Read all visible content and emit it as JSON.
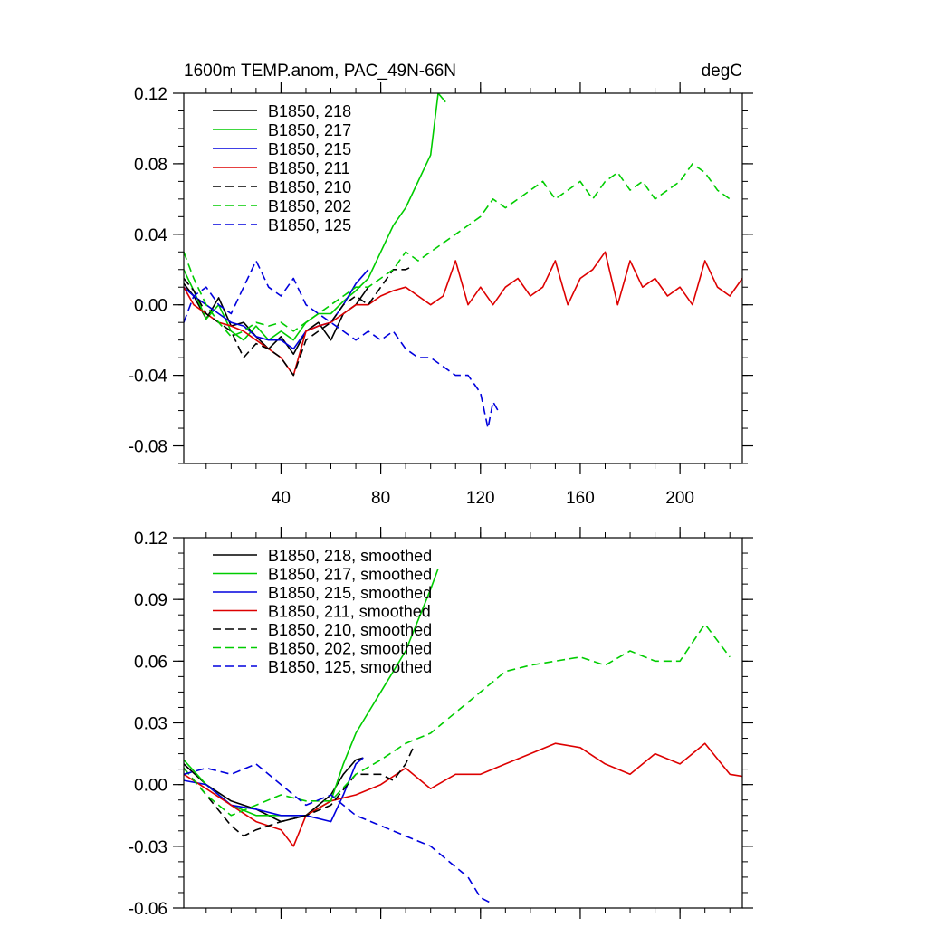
{
  "chart_data": [
    {
      "type": "line",
      "title": "1600m TEMP.anom, PAC_49N-66N",
      "units": "degC",
      "xlim": [
        1,
        225
      ],
      "ylim": [
        -0.09,
        0.12
      ],
      "xticks": [
        40,
        80,
        120,
        160,
        200
      ],
      "yticks": [
        0.12,
        0.08,
        0.04,
        0.0,
        -0.04,
        -0.08
      ],
      "ytick_labels": [
        "0.12",
        "0.08",
        "0.04",
        "0.00",
        "-0.04",
        "-0.08"
      ],
      "series": [
        {
          "name": "B1850, 218",
          "color": "#000000",
          "dash": "solid",
          "x": [
            1,
            5,
            10,
            15,
            20,
            25,
            30,
            35,
            40,
            45,
            50,
            55,
            60,
            65,
            70,
            75
          ],
          "y": [
            0.012,
            0.005,
            -0.008,
            0.004,
            -0.012,
            -0.01,
            -0.018,
            -0.025,
            -0.018,
            -0.028,
            -0.015,
            -0.01,
            -0.02,
            -0.005,
            0.0,
            0.01
          ]
        },
        {
          "name": "B1850, 217",
          "color": "#00cc00",
          "dash": "solid",
          "x": [
            1,
            5,
            10,
            15,
            20,
            25,
            30,
            35,
            40,
            45,
            50,
            55,
            60,
            65,
            70,
            75,
            80,
            85,
            90,
            95,
            100,
            103,
            106
          ],
          "y": [
            0.02,
            0.008,
            -0.008,
            0.0,
            -0.015,
            -0.02,
            -0.012,
            -0.02,
            -0.015,
            -0.02,
            -0.01,
            -0.005,
            -0.005,
            0.002,
            0.008,
            0.015,
            0.03,
            0.045,
            0.055,
            0.07,
            0.085,
            0.12,
            0.115
          ]
        },
        {
          "name": "B1850, 215",
          "color": "#0000dd",
          "dash": "solid",
          "x": [
            1,
            5,
            10,
            15,
            20,
            25,
            30,
            35,
            40,
            45,
            50,
            55,
            60,
            65,
            70,
            75
          ],
          "y": [
            0.01,
            0.005,
            0.0,
            -0.005,
            -0.01,
            -0.012,
            -0.018,
            -0.02,
            -0.02,
            -0.025,
            -0.015,
            -0.012,
            -0.01,
            0.0,
            0.012,
            0.02
          ]
        },
        {
          "name": "B1850, 211",
          "color": "#dd0000",
          "dash": "solid",
          "x": [
            1,
            5,
            10,
            15,
            20,
            25,
            30,
            35,
            40,
            45,
            50,
            55,
            60,
            65,
            70,
            75,
            80,
            85,
            90,
            95,
            100,
            105,
            110,
            115,
            120,
            125,
            130,
            135,
            140,
            145,
            150,
            155,
            160,
            165,
            170,
            175,
            180,
            185,
            190,
            195,
            200,
            205,
            210,
            215,
            220,
            225
          ],
          "y": [
            0.01,
            0.0,
            -0.005,
            -0.01,
            -0.012,
            -0.015,
            -0.02,
            -0.025,
            -0.03,
            -0.04,
            -0.015,
            -0.012,
            -0.01,
            -0.005,
            0.0,
            0.0,
            0.005,
            0.008,
            0.01,
            0.005,
            0.0,
            0.005,
            0.025,
            0.0,
            0.01,
            0.0,
            0.01,
            0.015,
            0.005,
            0.01,
            0.025,
            0.0,
            0.015,
            0.02,
            0.03,
            0.0,
            0.025,
            0.01,
            0.015,
            0.005,
            0.01,
            0.0,
            0.025,
            0.01,
            0.005,
            0.015
          ]
        },
        {
          "name": "B1850, 210",
          "color": "#000000",
          "dash": "dashed",
          "x": [
            1,
            5,
            10,
            15,
            20,
            25,
            30,
            35,
            40,
            45,
            50,
            55,
            60,
            65,
            70,
            75,
            80,
            85,
            90,
            93
          ],
          "y": [
            0.015,
            0.008,
            -0.005,
            -0.01,
            -0.015,
            -0.03,
            -0.022,
            -0.025,
            -0.03,
            -0.04,
            -0.02,
            -0.015,
            -0.01,
            0.0,
            0.005,
            0.0,
            0.01,
            0.02,
            0.02,
            0.022
          ]
        },
        {
          "name": "B1850, 202",
          "color": "#00cc00",
          "dash": "dashed",
          "x": [
            1,
            5,
            10,
            15,
            20,
            25,
            30,
            35,
            40,
            45,
            50,
            55,
            60,
            65,
            70,
            75,
            80,
            85,
            90,
            95,
            100,
            105,
            110,
            115,
            120,
            125,
            130,
            135,
            140,
            145,
            150,
            155,
            160,
            165,
            170,
            175,
            180,
            185,
            190,
            195,
            200,
            205,
            210,
            215,
            220
          ],
          "y": [
            0.03,
            0.015,
            0.0,
            -0.01,
            -0.018,
            -0.015,
            -0.01,
            -0.012,
            -0.01,
            -0.015,
            -0.01,
            -0.005,
            0.0,
            0.005,
            0.01,
            0.01,
            0.015,
            0.02,
            0.03,
            0.025,
            0.03,
            0.035,
            0.04,
            0.045,
            0.05,
            0.06,
            0.055,
            0.06,
            0.065,
            0.07,
            0.06,
            0.065,
            0.07,
            0.06,
            0.07,
            0.075,
            0.065,
            0.07,
            0.06,
            0.065,
            0.07,
            0.08,
            0.075,
            0.065,
            0.06
          ]
        },
        {
          "name": "B1850, 125",
          "color": "#0000dd",
          "dash": "dashed",
          "x": [
            1,
            5,
            10,
            15,
            20,
            25,
            30,
            35,
            40,
            45,
            50,
            55,
            60,
            65,
            70,
            75,
            80,
            85,
            90,
            95,
            100,
            105,
            110,
            115,
            120,
            123,
            125,
            127
          ],
          "y": [
            -0.01,
            0.005,
            0.01,
            0.0,
            -0.005,
            0.01,
            0.025,
            0.01,
            0.005,
            0.015,
            0.0,
            -0.005,
            -0.01,
            -0.015,
            -0.02,
            -0.015,
            -0.02,
            -0.015,
            -0.025,
            -0.03,
            -0.03,
            -0.035,
            -0.04,
            -0.04,
            -0.05,
            -0.07,
            -0.055,
            -0.06
          ]
        }
      ]
    },
    {
      "type": "line",
      "xlim": [
        1,
        225
      ],
      "ylim": [
        -0.06,
        0.12
      ],
      "xticks": [
        40,
        80,
        120,
        160,
        200
      ],
      "yticks": [
        0.12,
        0.09,
        0.06,
        0.03,
        0.0,
        -0.03,
        -0.06
      ],
      "ytick_labels": [
        "0.12",
        "0.09",
        "0.06",
        "0.03",
        "0.00",
        "-0.03",
        "-0.06"
      ],
      "series": [
        {
          "name": "B1850, 218, smoothed",
          "color": "#000000",
          "dash": "solid",
          "x": [
            1,
            10,
            20,
            30,
            40,
            50,
            60,
            65,
            70,
            73
          ],
          "y": [
            0.01,
            0.0,
            -0.008,
            -0.012,
            -0.018,
            -0.015,
            -0.005,
            0.005,
            0.012,
            0.013
          ]
        },
        {
          "name": "B1850, 217, smoothed",
          "color": "#00cc00",
          "dash": "solid",
          "x": [
            1,
            10,
            20,
            30,
            40,
            50,
            60,
            65,
            70,
            75,
            80,
            85,
            90,
            95,
            100,
            103
          ],
          "y": [
            0.012,
            0.0,
            -0.01,
            -0.015,
            -0.015,
            -0.015,
            -0.008,
            0.01,
            0.025,
            0.035,
            0.045,
            0.055,
            0.065,
            0.08,
            0.095,
            0.105
          ]
        },
        {
          "name": "B1850, 215, smoothed",
          "color": "#0000dd",
          "dash": "solid",
          "x": [
            1,
            10,
            20,
            30,
            40,
            50,
            60,
            65,
            70,
            73
          ],
          "y": [
            0.002,
            0.0,
            -0.01,
            -0.012,
            -0.015,
            -0.015,
            -0.018,
            -0.005,
            0.01,
            0.013
          ]
        },
        {
          "name": "B1850, 211, smoothed",
          "color": "#dd0000",
          "dash": "solid",
          "x": [
            1,
            10,
            20,
            30,
            40,
            45,
            50,
            60,
            70,
            80,
            90,
            100,
            110,
            120,
            130,
            140,
            150,
            160,
            170,
            180,
            190,
            200,
            210,
            220,
            225
          ],
          "y": [
            0.005,
            -0.002,
            -0.01,
            -0.018,
            -0.022,
            -0.03,
            -0.015,
            -0.008,
            -0.005,
            0.0,
            0.008,
            -0.002,
            0.005,
            0.005,
            0.01,
            0.015,
            0.02,
            0.018,
            0.01,
            0.005,
            0.015,
            0.01,
            0.02,
            0.005,
            0.004
          ]
        },
        {
          "name": "B1850, 210, smoothed",
          "color": "#000000",
          "dash": "dashed",
          "x": [
            1,
            10,
            20,
            25,
            30,
            40,
            50,
            60,
            70,
            80,
            85,
            90,
            93
          ],
          "y": [
            0.008,
            -0.005,
            -0.02,
            -0.025,
            -0.022,
            -0.018,
            -0.015,
            -0.01,
            0.005,
            0.005,
            0.002,
            0.01,
            0.018
          ]
        },
        {
          "name": "B1850, 202, smoothed",
          "color": "#00cc00",
          "dash": "dashed",
          "x": [
            1,
            10,
            20,
            30,
            40,
            50,
            60,
            70,
            80,
            90,
            100,
            110,
            120,
            130,
            140,
            150,
            160,
            170,
            180,
            190,
            200,
            210,
            220
          ],
          "y": [
            0.008,
            -0.005,
            -0.015,
            -0.01,
            -0.005,
            -0.008,
            -0.008,
            0.005,
            0.012,
            0.02,
            0.025,
            0.035,
            0.045,
            0.055,
            0.058,
            0.06,
            0.062,
            0.058,
            0.065,
            0.06,
            0.06,
            0.078,
            0.062
          ]
        },
        {
          "name": "B1850, 125, smoothed",
          "color": "#0000dd",
          "dash": "dashed",
          "x": [
            1,
            10,
            20,
            30,
            40,
            50,
            60,
            70,
            80,
            90,
            100,
            110,
            115,
            120,
            125
          ],
          "y": [
            0.005,
            0.008,
            0.005,
            0.01,
            0.0,
            -0.01,
            -0.005,
            -0.015,
            -0.02,
            -0.025,
            -0.03,
            -0.04,
            -0.045,
            -0.055,
            -0.058
          ]
        }
      ]
    }
  ]
}
